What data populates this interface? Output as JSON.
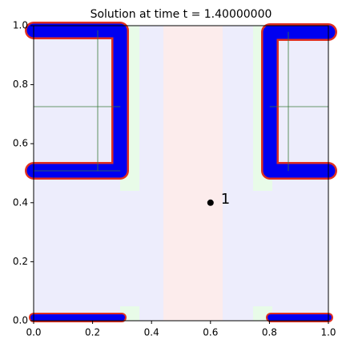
{
  "chart_data": {
    "type": "scatter",
    "title": "Solution at time t =      1.40000000",
    "xlim": [
      0,
      1
    ],
    "ylim": [
      0,
      1
    ],
    "xticks": [
      {
        "value": 0,
        "label": "0.0"
      },
      {
        "value": 0.2,
        "label": "0.2"
      },
      {
        "value": 0.4,
        "label": "0.4"
      },
      {
        "value": 0.6,
        "label": "0.6"
      },
      {
        "value": 0.8,
        "label": "0.8"
      },
      {
        "value": 1,
        "label": "1.0"
      }
    ],
    "yticks": [
      {
        "value": 0,
        "label": "0.0"
      },
      {
        "value": 0.2,
        "label": "0.2"
      },
      {
        "value": 0.4,
        "label": "0.4"
      },
      {
        "value": 0.6,
        "label": "0.6"
      },
      {
        "value": 0.8,
        "label": "0.8"
      },
      {
        "value": 1,
        "label": "1.0"
      }
    ],
    "series": [
      {
        "name": "1",
        "color": "#000000",
        "x": [
          0.6
        ],
        "values": [
          0.4
        ]
      }
    ]
  }
}
